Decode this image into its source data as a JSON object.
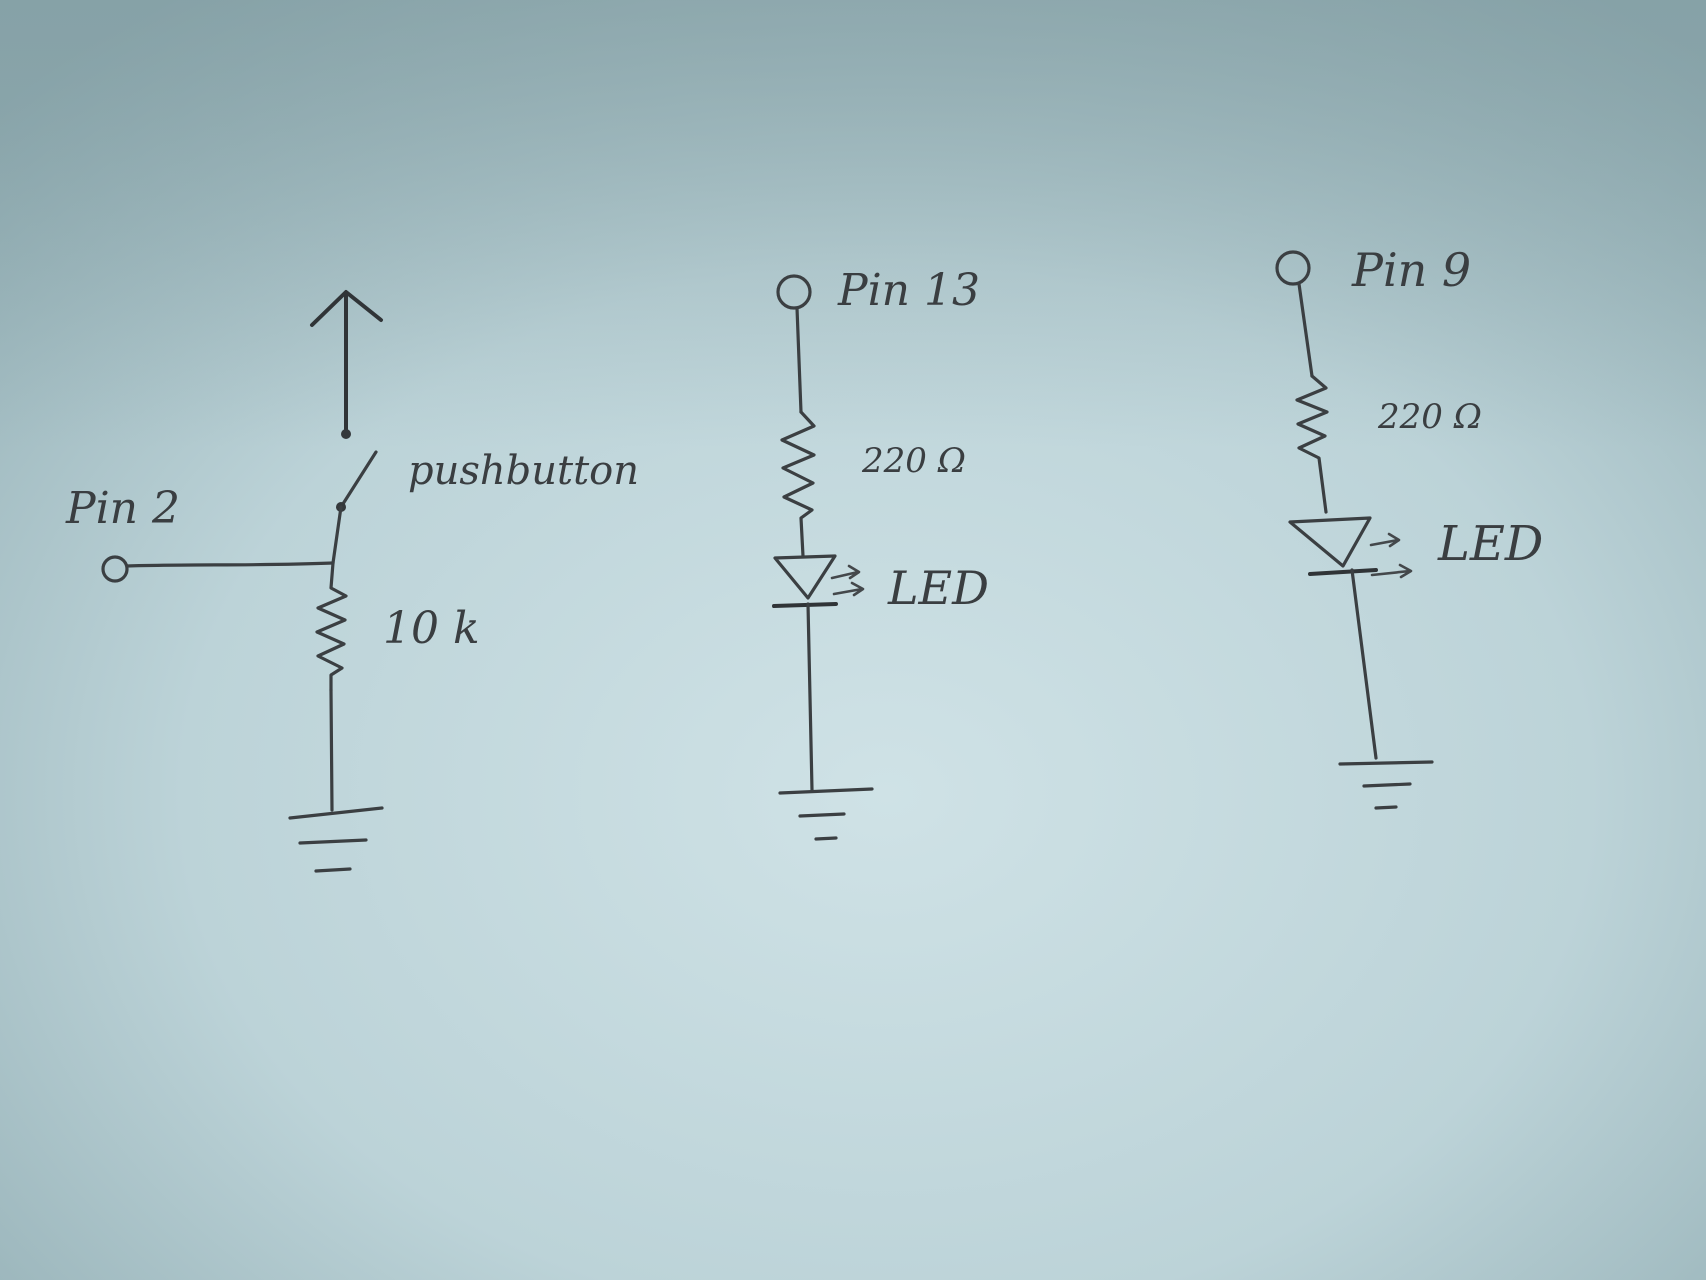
{
  "circuit_1": {
    "pin_label": "Pin 2",
    "switch_label": "pushbutton",
    "resistor_label": "10 k"
  },
  "circuit_2": {
    "pin_label": "Pin 13",
    "resistor_label": "220 Ω",
    "led_label": "LED"
  },
  "circuit_3": {
    "pin_label": "Pin 9",
    "resistor_label": "220 Ω",
    "led_label": "LED"
  }
}
